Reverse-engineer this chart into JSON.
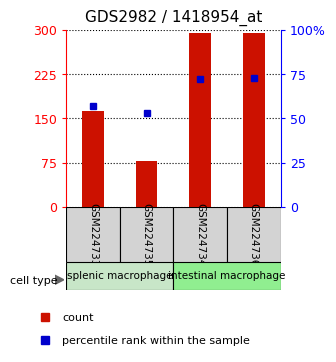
{
  "title": "GDS2982 / 1418954_at",
  "samples": [
    "GSM224733",
    "GSM224735",
    "GSM224734",
    "GSM224736"
  ],
  "counts": [
    163,
    77,
    295,
    295
  ],
  "percentiles": [
    57,
    53,
    72,
    73
  ],
  "ylim_left": [
    0,
    300
  ],
  "ylim_right": [
    0,
    100
  ],
  "yticks_left": [
    0,
    75,
    150,
    225,
    300
  ],
  "yticks_right": [
    0,
    25,
    50,
    75,
    100
  ],
  "ytick_labels_left": [
    "0",
    "75",
    "150",
    "225",
    "300"
  ],
  "ytick_labels_right": [
    "0",
    "25",
    "50",
    "75",
    "100%"
  ],
  "groups": [
    {
      "label": "splenic macrophage",
      "indices": [
        0,
        1
      ],
      "color": "#c8e6c8"
    },
    {
      "label": "intestinal macrophage",
      "indices": [
        2,
        3
      ],
      "color": "#90ee90"
    }
  ],
  "bar_color": "#cc1100",
  "percentile_color": "#0000cc",
  "bar_width": 0.4,
  "title_fontsize": 11,
  "tick_fontsize": 9,
  "legend_fontsize": 8,
  "cell_type_label": "cell type",
  "legend_items": [
    {
      "label": "count",
      "color": "#cc1100"
    },
    {
      "label": "percentile rank within the sample",
      "color": "#0000cc"
    }
  ]
}
